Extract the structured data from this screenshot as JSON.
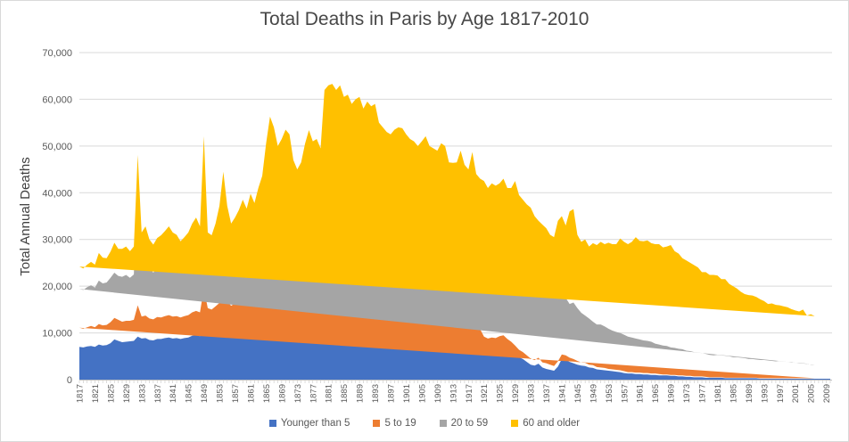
{
  "chart_data": {
    "type": "area",
    "stacked": true,
    "title": "Total Deaths in Paris by Age 1817-2010",
    "xlabel": "",
    "ylabel": "Total Annual Deaths",
    "x_start": 1817,
    "x_end": 2010,
    "ylim": [
      0,
      70000
    ],
    "y_tick_step": 10000,
    "y_tick_labels": [
      "0",
      "10,000",
      "20,000",
      "30,000",
      "40,000",
      "50,000",
      "60,000",
      "70,000"
    ],
    "x_tick_labels": [
      "1817",
      "1821",
      "1825",
      "1829",
      "1833",
      "1837",
      "1841",
      "1845",
      "1849",
      "1853",
      "1857",
      "1861",
      "1865",
      "1869",
      "1873",
      "1877",
      "1881",
      "1885",
      "1889",
      "1893",
      "1897",
      "1901",
      "1905",
      "1909",
      "1913",
      "1917",
      "1921",
      "1925",
      "1929",
      "1933",
      "1937",
      "1941",
      "1945",
      "1949",
      "1953",
      "1957",
      "1961",
      "1965",
      "1969",
      "1973",
      "1977",
      "1981",
      "1985",
      "1989",
      "1993",
      "1997",
      "2001",
      "2005",
      "2009"
    ],
    "gridlines": true,
    "legend_position": "bottom",
    "colors": {
      "grid": "#d9d9d9",
      "axis": "#bfbfbf",
      "tick": "#c6c6c6",
      "text": "#595959",
      "title": "#474747"
    },
    "series": [
      {
        "name": "Younger than 5",
        "color": "#4472C4",
        "values": [
          7000,
          6900,
          7100,
          7200,
          7000,
          7500,
          7300,
          7400,
          7800,
          8600,
          8300,
          8000,
          8100,
          8200,
          8300,
          9200,
          8800,
          8900,
          8500,
          8400,
          8700,
          8700,
          8900,
          9000,
          8800,
          8900,
          8700,
          8900,
          9000,
          9400,
          9500,
          9300,
          12400,
          10000,
          9800,
          10300,
          10800,
          11500,
          10900,
          10400,
          10800,
          11200,
          11800,
          11400,
          12300,
          11900,
          12800,
          13600,
          15800,
          16300,
          15500,
          14800,
          15000,
          15500,
          15200,
          14500,
          14200,
          14400,
          15300,
          16000,
          15600,
          15800,
          15400,
          17500,
          18000,
          18200,
          17800,
          18000,
          17200,
          17400,
          16800,
          16900,
          17000,
          16000,
          16300,
          15800,
          15900,
          14800,
          14500,
          14000,
          13800,
          14000,
          14200,
          14000,
          13200,
          12700,
          12400,
          12000,
          11800,
          11900,
          11000,
          10800,
          10500,
          10300,
          10500,
          9000,
          8800,
          8700,
          8200,
          7600,
          7300,
          7600,
          7000,
          7200,
          6700,
          6400,
          6500,
          6400,
          6600,
          6700,
          6200,
          5800,
          5200,
          4800,
          4400,
          3800,
          3200,
          3000,
          3400,
          2600,
          2300,
          2100,
          1900,
          2800,
          4400,
          4200,
          3800,
          3500,
          3200,
          3000,
          2900,
          2600,
          2500,
          2200,
          2100,
          2000,
          1900,
          1800,
          1700,
          1600,
          1400,
          1300,
          1300,
          1200,
          1200,
          1100,
          1100,
          1000,
          1000,
          900,
          900,
          900,
          800,
          800,
          700,
          700,
          600,
          600,
          500,
          500,
          500,
          400,
          400,
          400,
          400,
          400,
          300,
          300,
          300,
          300,
          300,
          300,
          300,
          300,
          300,
          200,
          200,
          200,
          200,
          200,
          200,
          200,
          200,
          200,
          200,
          200,
          200,
          200,
          200,
          200,
          200,
          200,
          200,
          200
        ]
      },
      {
        "name": "5 to 19",
        "color": "#ED7D31",
        "values": [
          4100,
          4000,
          4100,
          4300,
          4200,
          4400,
          4300,
          4300,
          4500,
          4600,
          4500,
          4400,
          4500,
          4400,
          4500,
          6700,
          4700,
          4800,
          4600,
          4500,
          4700,
          4600,
          4700,
          4800,
          4700,
          4700,
          4600,
          4700,
          4800,
          5000,
          5200,
          5100,
          7100,
          5300,
          5200,
          5400,
          5600,
          6500,
          5800,
          5400,
          5500,
          5700,
          6000,
          5800,
          6200,
          6000,
          6400,
          6800,
          7500,
          7700,
          7300,
          7000,
          7100,
          7400,
          7300,
          6900,
          6700,
          6800,
          7200,
          7600,
          7400,
          7400,
          7200,
          8800,
          9300,
          9200,
          9000,
          9100,
          8600,
          8700,
          8400,
          8500,
          8500,
          8000,
          8200,
          8000,
          8000,
          7400,
          7200,
          7000,
          6900,
          7000,
          7100,
          7000,
          6600,
          6300,
          6200,
          6000,
          5900,
          6000,
          5500,
          5400,
          5300,
          5200,
          5100,
          4500,
          4400,
          4600,
          4800,
          4300,
          4200,
          4800,
          4000,
          3600,
          2500,
          2400,
          2500,
          2500,
          2700,
          2800,
          2500,
          2300,
          2100,
          1600,
          1500,
          1400,
          1300,
          1200,
          1300,
          1100,
          1200,
          1100,
          1000,
          1100,
          1000,
          1000,
          900,
          900,
          800,
          700,
          700,
          600,
          600,
          500,
          500,
          500,
          400,
          400,
          400,
          400,
          400,
          300,
          300,
          300,
          300,
          300,
          300,
          300,
          300,
          300,
          200,
          200,
          200,
          200,
          200,
          200,
          200,
          200,
          200,
          200,
          200,
          200,
          100,
          100,
          100,
          100,
          100,
          100,
          100,
          100,
          100,
          100,
          100,
          100,
          100,
          100,
          100,
          100,
          100,
          100,
          100,
          100,
          100,
          100,
          100,
          100,
          100,
          100,
          100,
          100
        ]
      },
      {
        "name": "20 to 59",
        "color": "#A5A5A5",
        "values": [
          8300,
          8300,
          8600,
          8700,
          8500,
          9300,
          9000,
          9100,
          9500,
          9700,
          9400,
          9600,
          9800,
          9200,
          9700,
          30100,
          12000,
          12500,
          10900,
          10000,
          10600,
          11000,
          11500,
          12000,
          11400,
          11000,
          10500,
          10800,
          11200,
          11800,
          12500,
          11900,
          28600,
          10500,
          10200,
          11200,
          13300,
          20500,
          13700,
          11300,
          11700,
          12400,
          13200,
          12300,
          13500,
          12700,
          13800,
          14600,
          15800,
          20500,
          19200,
          17000,
          17900,
          20100,
          21000,
          15600,
          14100,
          14800,
          16500,
          17800,
          16500,
          16800,
          15900,
          22700,
          23700,
          23400,
          22700,
          23400,
          22200,
          22400,
          21300,
          22100,
          22500,
          21500,
          22000,
          21700,
          22100,
          19800,
          19300,
          19000,
          18800,
          19300,
          19500,
          19400,
          19200,
          19000,
          18900,
          18500,
          19300,
          20200,
          19500,
          19300,
          19200,
          20100,
          19400,
          18500,
          18300,
          19700,
          21000,
          19100,
          18500,
          21000,
          18000,
          17200,
          18800,
          18200,
          19200,
          18900,
          19000,
          19500,
          18800,
          19200,
          20700,
          19800,
          19300,
          18600,
          18000,
          17500,
          16800,
          16500,
          15200,
          14800,
          14700,
          13700,
          13100,
          12300,
          11500,
          12100,
          11300,
          10600,
          10100,
          9900,
          9300,
          9100,
          9200,
          8900,
          8600,
          8300,
          8100,
          8000,
          7800,
          7600,
          7400,
          7300,
          7100,
          7000,
          6900,
          6800,
          6400,
          6300,
          6200,
          6100,
          5900,
          5800,
          5700,
          5600,
          5400,
          5300,
          5200,
          5100,
          5000,
          4900,
          4800,
          4700,
          4800,
          4700,
          4700,
          4600,
          4400,
          4400,
          4300,
          4200,
          4000,
          4000,
          3900,
          3900,
          3900,
          3800,
          3700,
          3600,
          3700,
          3600,
          3500,
          3500,
          3300,
          3300,
          3200,
          3100,
          2900,
          2900,
          2800,
          2800,
          2700,
          2700
        ]
      },
      {
        "name": "60 and older",
        "color": "#FFC000",
        "values": [
          4800,
          4600,
          4800,
          5000,
          4900,
          5900,
          5500,
          5200,
          5600,
          6400,
          5800,
          6000,
          6100,
          5700,
          6000,
          2100,
          6000,
          6600,
          6000,
          6000,
          6300,
          6600,
          6700,
          7000,
          6600,
          6400,
          5800,
          6100,
          6500,
          7200,
          7500,
          6500,
          4000,
          5700,
          5700,
          6500,
          7500,
          6000,
          6800,
          6300,
          6700,
          7000,
          7500,
          7100,
          7800,
          7200,
          8000,
          8600,
          11500,
          11800,
          12000,
          11200,
          11500,
          10500,
          9000,
          10000,
          10000,
          10500,
          11500,
          12000,
          11500,
          11500,
          11000,
          13000,
          12000,
          12500,
          12500,
          12500,
          12500,
          12500,
          12500,
          12500,
          12500,
          12500,
          13000,
          13000,
          13000,
          13000,
          13000,
          13000,
          13000,
          13200,
          13200,
          13400,
          13500,
          13500,
          13500,
          13500,
          14000,
          14000,
          14000,
          14000,
          14000,
          15000,
          15000,
          14500,
          14900,
          13500,
          15000,
          15000,
          15000,
          15300,
          15000,
          15000,
          14500,
          14000,
          13800,
          13700,
          13700,
          14000,
          13500,
          13700,
          14500,
          13300,
          13300,
          13700,
          14300,
          13300,
          12500,
          13000,
          13700,
          13000,
          12900,
          16400,
          16500,
          15500,
          19800,
          20000,
          15700,
          15200,
          16300,
          15400,
          16800,
          17000,
          17700,
          17600,
          18400,
          18500,
          18800,
          20200,
          19900,
          19800,
          20500,
          21700,
          21100,
          21200,
          21500,
          21100,
          21300,
          21500,
          21000,
          21300,
          21900,
          20700,
          20400,
          19500,
          19300,
          18900,
          18600,
          18200,
          17300,
          17500,
          17100,
          17200,
          17000,
          16300,
          16400,
          15500,
          15200,
          14700,
          14100,
          13700,
          13700,
          13600,
          13400,
          13000,
          12600,
          12100,
          12300,
          12100,
          11900,
          11800,
          11700,
          11300,
          11200,
          11000,
          11500,
          10300,
          10800,
          10400,
          10500,
          10600,
          10800,
          10500
        ]
      }
    ]
  }
}
